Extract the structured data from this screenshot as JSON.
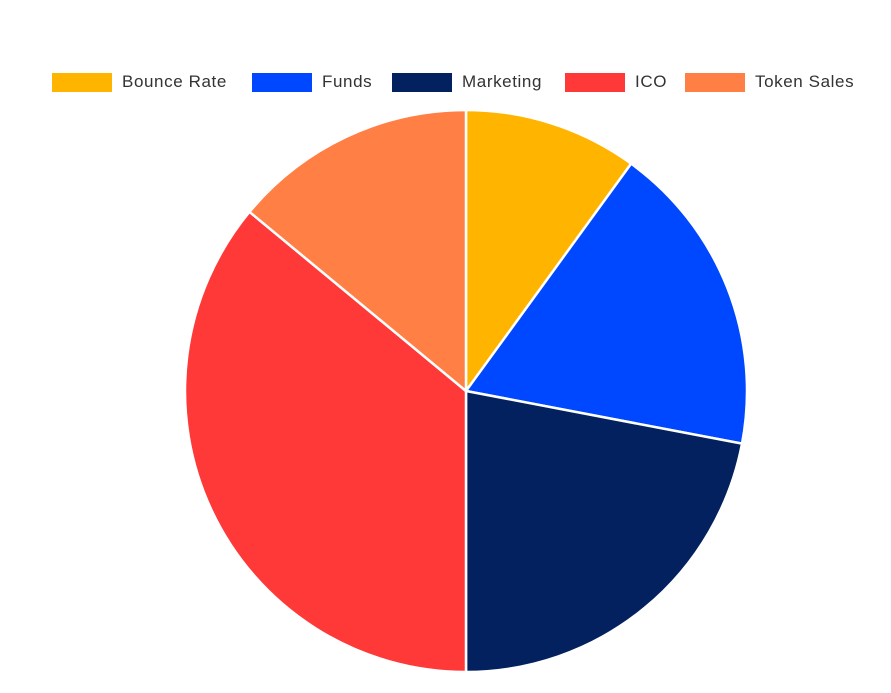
{
  "chart_data": {
    "type": "pie",
    "title": "",
    "legend_position": "top",
    "categories": [
      "Bounce Rate",
      "Funds",
      "Marketing",
      "ICO",
      "Token Sales"
    ],
    "values": [
      10,
      18,
      22,
      36,
      14
    ],
    "colors": [
      "#FFB400",
      "#0048FF",
      "#03215F",
      "#FF3838",
      "#FF7F45"
    ],
    "slice_border_color": "#ffffff"
  }
}
